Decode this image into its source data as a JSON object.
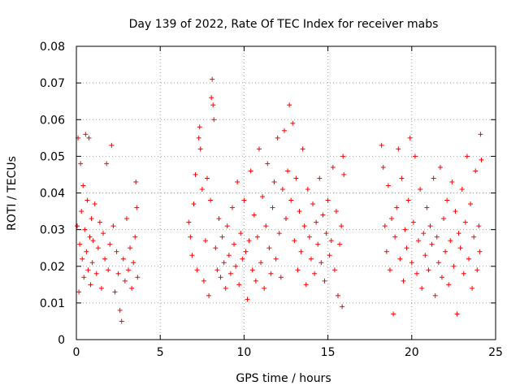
{
  "chart_data": {
    "type": "scatter",
    "title": "Day 139 of 2022, Rate Of TEC Index for receiver mabs",
    "xlabel": "GPS time / hours",
    "ylabel": "ROTI / TECUs",
    "xlim": [
      0,
      25
    ],
    "ylim": [
      0,
      0.08
    ],
    "x_ticks": [
      0,
      5,
      10,
      15,
      20,
      25
    ],
    "y_ticks": [
      0,
      0.01,
      0.02,
      0.03,
      0.04,
      0.05,
      0.06,
      0.07,
      0.08
    ],
    "x_tick_labels": [
      "0",
      "5",
      "10",
      "15",
      "20",
      "25"
    ],
    "y_tick_labels": [
      "0",
      "0.01",
      "0.02",
      "0.03",
      "0.04",
      "0.05",
      "0.06",
      "0.07",
      "0.08"
    ],
    "grid": true,
    "marker": "+",
    "color": "#ff0000",
    "series": [
      {
        "points": [
          [
            0.05,
            0.031
          ],
          [
            0.1,
            0.055
          ],
          [
            0.15,
            0.013
          ],
          [
            0.2,
            0.026
          ],
          [
            0.25,
            0.048
          ],
          [
            0.3,
            0.035
          ],
          [
            0.35,
            0.022
          ],
          [
            0.4,
            0.042
          ],
          [
            0.45,
            0.017
          ],
          [
            0.5,
            0.03
          ],
          [
            0.55,
            0.056
          ],
          [
            0.6,
            0.024
          ],
          [
            0.65,
            0.038
          ],
          [
            0.7,
            0.019
          ],
          [
            0.75,
            0.055
          ],
          [
            0.8,
            0.028
          ],
          [
            0.85,
            0.015
          ],
          [
            0.9,
            0.033
          ],
          [
            0.95,
            0.021
          ],
          [
            1.0,
            0.027
          ],
          [
            1.1,
            0.037
          ],
          [
            1.2,
            0.018
          ],
          [
            1.3,
            0.025
          ],
          [
            1.4,
            0.032
          ],
          [
            1.5,
            0.014
          ],
          [
            1.6,
            0.029
          ],
          [
            1.7,
            0.022
          ],
          [
            1.8,
            0.048
          ],
          [
            1.9,
            0.019
          ],
          [
            2.0,
            0.026
          ],
          [
            2.1,
            0.053
          ],
          [
            2.2,
            0.031
          ],
          [
            2.3,
            0.013
          ],
          [
            2.4,
            0.024
          ],
          [
            2.5,
            0.018
          ],
          [
            2.6,
            0.008
          ],
          [
            2.7,
            0.005
          ],
          [
            2.8,
            0.022
          ],
          [
            2.9,
            0.016
          ],
          [
            3.0,
            0.033
          ],
          [
            3.1,
            0.019
          ],
          [
            3.2,
            0.025
          ],
          [
            3.3,
            0.014
          ],
          [
            3.4,
            0.021
          ],
          [
            3.5,
            0.028
          ],
          [
            3.55,
            0.043
          ],
          [
            3.6,
            0.036
          ],
          [
            3.65,
            0.017
          ]
        ]
      },
      {
        "points": [
          [
            6.7,
            0.032
          ],
          [
            6.8,
            0.028
          ],
          [
            6.9,
            0.023
          ],
          [
            7.0,
            0.037
          ],
          [
            7.1,
            0.045
          ],
          [
            7.2,
            0.019
          ],
          [
            7.3,
            0.055
          ],
          [
            7.35,
            0.058
          ],
          [
            7.4,
            0.052
          ],
          [
            7.5,
            0.041
          ],
          [
            7.6,
            0.016
          ],
          [
            7.7,
            0.027
          ],
          [
            7.8,
            0.044
          ],
          [
            7.9,
            0.012
          ],
          [
            8.0,
            0.038
          ],
          [
            8.05,
            0.066
          ],
          [
            8.1,
            0.071
          ],
          [
            8.15,
            0.064
          ],
          [
            8.2,
            0.06
          ],
          [
            8.3,
            0.025
          ],
          [
            8.4,
            0.019
          ],
          [
            8.5,
            0.033
          ],
          [
            8.6,
            0.017
          ],
          [
            8.7,
            0.028
          ],
          [
            8.8,
            0.021
          ],
          [
            8.9,
            0.014
          ],
          [
            9.0,
            0.031
          ],
          [
            9.1,
            0.023
          ],
          [
            9.2,
            0.018
          ],
          [
            9.3,
            0.036
          ],
          [
            9.4,
            0.026
          ],
          [
            9.5,
            0.02
          ],
          [
            9.6,
            0.043
          ],
          [
            9.7,
            0.015
          ],
          [
            9.8,
            0.029
          ],
          [
            9.9,
            0.022
          ],
          [
            10.0,
            0.038
          ],
          [
            10.1,
            0.024
          ],
          [
            10.2,
            0.011
          ],
          [
            10.3,
            0.027
          ],
          [
            10.4,
            0.046
          ],
          [
            10.5,
            0.019
          ],
          [
            10.6,
            0.034
          ],
          [
            10.7,
            0.016
          ],
          [
            10.8,
            0.028
          ],
          [
            10.9,
            0.052
          ],
          [
            11.0,
            0.021
          ],
          [
            11.1,
            0.039
          ],
          [
            11.2,
            0.014
          ],
          [
            11.3,
            0.031
          ],
          [
            11.4,
            0.048
          ],
          [
            11.5,
            0.025
          ],
          [
            11.6,
            0.018
          ],
          [
            11.7,
            0.036
          ],
          [
            11.8,
            0.043
          ],
          [
            11.9,
            0.022
          ],
          [
            12.0,
            0.055
          ],
          [
            12.1,
            0.029
          ],
          [
            12.2,
            0.017
          ],
          [
            12.3,
            0.041
          ],
          [
            12.4,
            0.057
          ],
          [
            12.5,
            0.033
          ],
          [
            12.6,
            0.046
          ],
          [
            12.7,
            0.064
          ],
          [
            12.8,
            0.038
          ],
          [
            12.9,
            0.059
          ],
          [
            13.0,
            0.027
          ],
          [
            13.1,
            0.044
          ],
          [
            13.2,
            0.019
          ],
          [
            13.3,
            0.035
          ],
          [
            13.4,
            0.024
          ],
          [
            13.5,
            0.052
          ],
          [
            13.6,
            0.031
          ],
          [
            13.7,
            0.015
          ],
          [
            13.8,
            0.041
          ],
          [
            13.9,
            0.028
          ],
          [
            14.0,
            0.022
          ],
          [
            14.1,
            0.037
          ],
          [
            14.2,
            0.018
          ],
          [
            14.3,
            0.032
          ],
          [
            14.4,
            0.026
          ],
          [
            14.5,
            0.044
          ],
          [
            14.6,
            0.021
          ],
          [
            14.7,
            0.034
          ],
          [
            14.8,
            0.016
          ],
          [
            14.9,
            0.029
          ],
          [
            15.0,
            0.038
          ],
          [
            15.1,
            0.023
          ],
          [
            15.2,
            0.027
          ],
          [
            15.3,
            0.047
          ],
          [
            15.4,
            0.019
          ],
          [
            15.5,
            0.035
          ],
          [
            15.6,
            0.012
          ],
          [
            15.7,
            0.026
          ],
          [
            15.8,
            0.031
          ],
          [
            15.85,
            0.009
          ],
          [
            15.9,
            0.05
          ],
          [
            15.95,
            0.045
          ]
        ]
      },
      {
        "points": [
          [
            18.2,
            0.053
          ],
          [
            18.3,
            0.047
          ],
          [
            18.4,
            0.031
          ],
          [
            18.5,
            0.024
          ],
          [
            18.6,
            0.042
          ],
          [
            18.7,
            0.019
          ],
          [
            18.8,
            0.033
          ],
          [
            18.9,
            0.007
          ],
          [
            19.0,
            0.028
          ],
          [
            19.1,
            0.036
          ],
          [
            19.2,
            0.052
          ],
          [
            19.3,
            0.022
          ],
          [
            19.4,
            0.044
          ],
          [
            19.5,
            0.016
          ],
          [
            19.6,
            0.03
          ],
          [
            19.7,
            0.025
          ],
          [
            19.8,
            0.038
          ],
          [
            19.9,
            0.055
          ],
          [
            20.0,
            0.021
          ],
          [
            20.1,
            0.032
          ],
          [
            20.2,
            0.05
          ],
          [
            20.3,
            0.018
          ],
          [
            20.4,
            0.027
          ],
          [
            20.5,
            0.041
          ],
          [
            20.6,
            0.014
          ],
          [
            20.7,
            0.029
          ],
          [
            20.8,
            0.023
          ],
          [
            20.9,
            0.036
          ],
          [
            21.0,
            0.019
          ],
          [
            21.1,
            0.031
          ],
          [
            21.2,
            0.026
          ],
          [
            21.3,
            0.044
          ],
          [
            21.4,
            0.012
          ],
          [
            21.5,
            0.028
          ],
          [
            21.6,
            0.021
          ],
          [
            21.7,
            0.047
          ],
          [
            21.8,
            0.017
          ],
          [
            21.9,
            0.033
          ],
          [
            22.0,
            0.024
          ],
          [
            22.1,
            0.038
          ],
          [
            22.2,
            0.015
          ],
          [
            22.3,
            0.027
          ],
          [
            22.4,
            0.043
          ],
          [
            22.5,
            0.02
          ],
          [
            22.6,
            0.035
          ],
          [
            22.7,
            0.007
          ],
          [
            22.8,
            0.029
          ],
          [
            22.9,
            0.025
          ],
          [
            23.0,
            0.041
          ],
          [
            23.1,
            0.018
          ],
          [
            23.2,
            0.032
          ],
          [
            23.3,
            0.05
          ],
          [
            23.4,
            0.022
          ],
          [
            23.5,
            0.037
          ],
          [
            23.6,
            0.014
          ],
          [
            23.7,
            0.028
          ],
          [
            23.8,
            0.046
          ],
          [
            23.9,
            0.019
          ],
          [
            24.0,
            0.031
          ],
          [
            24.05,
            0.024
          ],
          [
            24.1,
            0.056
          ],
          [
            24.15,
            0.049
          ]
        ]
      }
    ]
  }
}
